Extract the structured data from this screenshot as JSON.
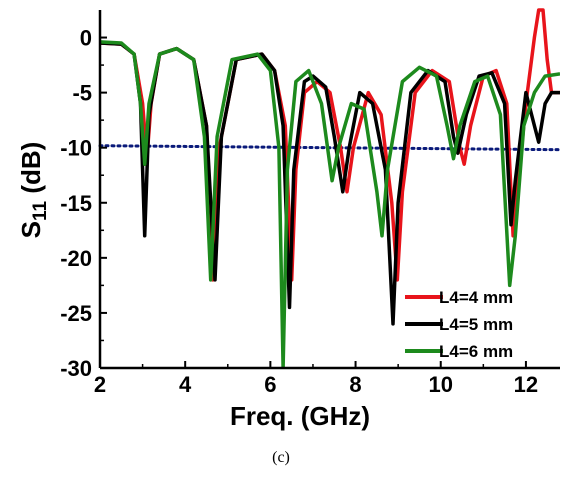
{
  "caption": "(c)",
  "chart_data": {
    "type": "line",
    "xlabel": "Freq. (GHz)",
    "ylabel_main": "S",
    "ylabel_sub": "11",
    "ylabel_unit": " (dB)",
    "xlim": [
      2,
      12.8
    ],
    "ylim": [
      -30,
      2.5
    ],
    "x_ticks": [
      2,
      4,
      6,
      8,
      10,
      12
    ],
    "y_ticks": [
      0,
      -5,
      -10,
      -15,
      -20,
      -25,
      -30
    ],
    "legend_position": "bottom-right",
    "reference_line": {
      "y": -10,
      "color": "#0a1a7a",
      "style": "dotted"
    },
    "series": [
      {
        "name": "L4=4 mm",
        "color": "#e8141b",
        "points": [
          [
            2,
            -0.5
          ],
          [
            2.5,
            -0.6
          ],
          [
            2.8,
            -1.5
          ],
          [
            3.0,
            -6
          ],
          [
            3.1,
            -11
          ],
          [
            3.2,
            -6
          ],
          [
            3.4,
            -1.5
          ],
          [
            3.8,
            -1
          ],
          [
            4.2,
            -2
          ],
          [
            4.5,
            -8
          ],
          [
            4.65,
            -22
          ],
          [
            4.8,
            -10
          ],
          [
            5.2,
            -2
          ],
          [
            5.8,
            -1.5
          ],
          [
            6.1,
            -3
          ],
          [
            6.35,
            -8
          ],
          [
            6.5,
            -22
          ],
          [
            6.6,
            -12
          ],
          [
            6.8,
            -5
          ],
          [
            7.1,
            -4
          ],
          [
            7.4,
            -5
          ],
          [
            7.65,
            -10
          ],
          [
            7.8,
            -14
          ],
          [
            7.95,
            -10
          ],
          [
            8.3,
            -5
          ],
          [
            8.6,
            -7
          ],
          [
            8.85,
            -15
          ],
          [
            8.98,
            -22
          ],
          [
            9.1,
            -14
          ],
          [
            9.4,
            -5
          ],
          [
            9.8,
            -3
          ],
          [
            10.2,
            -4
          ],
          [
            10.45,
            -10
          ],
          [
            10.55,
            -11.5
          ],
          [
            10.7,
            -8
          ],
          [
            11.0,
            -3.5
          ],
          [
            11.3,
            -3
          ],
          [
            11.55,
            -6
          ],
          [
            11.7,
            -18
          ],
          [
            11.8,
            -14
          ],
          [
            12.0,
            -6
          ],
          [
            12.2,
            0
          ],
          [
            12.3,
            2.5
          ],
          [
            12.4,
            2.5
          ],
          [
            12.5,
            -2
          ],
          [
            12.6,
            -5
          ],
          [
            12.8,
            -5
          ]
        ]
      },
      {
        "name": "L4=5 mm",
        "color": "#000000",
        "points": [
          [
            2,
            -0.5
          ],
          [
            2.5,
            -0.6
          ],
          [
            2.8,
            -1.5
          ],
          [
            2.95,
            -6
          ],
          [
            3.05,
            -18
          ],
          [
            3.15,
            -7
          ],
          [
            3.4,
            -1.5
          ],
          [
            3.8,
            -1
          ],
          [
            4.2,
            -2
          ],
          [
            4.5,
            -8
          ],
          [
            4.7,
            -22
          ],
          [
            4.85,
            -9
          ],
          [
            5.2,
            -2
          ],
          [
            5.8,
            -1.5
          ],
          [
            6.1,
            -3
          ],
          [
            6.3,
            -8
          ],
          [
            6.45,
            -24.5
          ],
          [
            6.55,
            -12
          ],
          [
            6.8,
            -4
          ],
          [
            7.0,
            -3.5
          ],
          [
            7.3,
            -4.5
          ],
          [
            7.5,
            -9
          ],
          [
            7.7,
            -14
          ],
          [
            7.85,
            -10
          ],
          [
            8.1,
            -5
          ],
          [
            8.4,
            -6
          ],
          [
            8.7,
            -12
          ],
          [
            8.88,
            -26
          ],
          [
            9.0,
            -15
          ],
          [
            9.3,
            -5
          ],
          [
            9.7,
            -3
          ],
          [
            10.1,
            -4
          ],
          [
            10.3,
            -9
          ],
          [
            10.4,
            -10.5
          ],
          [
            10.6,
            -7
          ],
          [
            10.9,
            -3.5
          ],
          [
            11.2,
            -3.2
          ],
          [
            11.5,
            -6
          ],
          [
            11.65,
            -17
          ],
          [
            11.75,
            -13
          ],
          [
            12.0,
            -5
          ],
          [
            12.2,
            -8
          ],
          [
            12.3,
            -9.5
          ],
          [
            12.45,
            -6
          ],
          [
            12.6,
            -5
          ],
          [
            12.8,
            -5
          ]
        ]
      },
      {
        "name": "L4=6 mm",
        "color": "#1d8a1d",
        "points": [
          [
            2,
            -0.4
          ],
          [
            2.5,
            -0.5
          ],
          [
            2.8,
            -1.5
          ],
          [
            2.95,
            -6
          ],
          [
            3.05,
            -11.5
          ],
          [
            3.15,
            -6
          ],
          [
            3.4,
            -1.5
          ],
          [
            3.8,
            -1
          ],
          [
            4.2,
            -2
          ],
          [
            4.45,
            -9
          ],
          [
            4.6,
            -22
          ],
          [
            4.75,
            -9
          ],
          [
            5.1,
            -2
          ],
          [
            5.7,
            -1.5
          ],
          [
            6.0,
            -3
          ],
          [
            6.2,
            -10
          ],
          [
            6.3,
            -30
          ],
          [
            6.4,
            -12
          ],
          [
            6.6,
            -4
          ],
          [
            6.9,
            -3
          ],
          [
            7.2,
            -6
          ],
          [
            7.45,
            -13
          ],
          [
            7.6,
            -10
          ],
          [
            7.9,
            -6
          ],
          [
            8.2,
            -6.5
          ],
          [
            8.5,
            -14
          ],
          [
            8.62,
            -18
          ],
          [
            8.75,
            -12
          ],
          [
            9.1,
            -4
          ],
          [
            9.5,
            -2.7
          ],
          [
            9.9,
            -3.5
          ],
          [
            10.15,
            -8
          ],
          [
            10.3,
            -11
          ],
          [
            10.45,
            -8
          ],
          [
            10.8,
            -4
          ],
          [
            11.1,
            -3.5
          ],
          [
            11.4,
            -7
          ],
          [
            11.62,
            -22.5
          ],
          [
            11.75,
            -18
          ],
          [
            11.95,
            -8
          ],
          [
            12.2,
            -5
          ],
          [
            12.45,
            -3.5
          ],
          [
            12.8,
            -3.3
          ]
        ]
      }
    ]
  }
}
